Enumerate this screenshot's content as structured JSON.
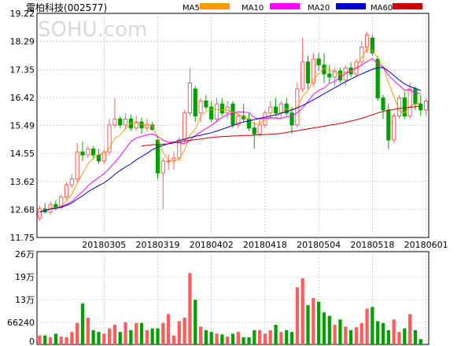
{
  "header": {
    "stock_name": "雷柏科技",
    "stock_code": "(002577)",
    "watermark": "SOHU.com"
  },
  "legend": [
    {
      "label": "MA5",
      "color": "#ff9900"
    },
    {
      "label": "MA10",
      "color": "#ff00ff"
    },
    {
      "label": "MA20",
      "color": "#0000cc"
    },
    {
      "label": "MA60",
      "color": "#cc0000"
    }
  ],
  "colors": {
    "up": "#ff5b5b",
    "down": "#00a000",
    "grid": "#b0b0b0",
    "axis": "#000000"
  },
  "chart_data": [
    {
      "type": "candlestick",
      "title": "雷柏科技(002577)",
      "ylim": [
        11.75,
        19.22
      ],
      "y_ticks": [
        "19.22",
        "18.29",
        "17.35",
        "16.42",
        "15.49",
        "14.55",
        "13.62",
        "12.68",
        "11.75"
      ],
      "x_tick_labels": [
        {
          "label": "20180305",
          "index": 12
        },
        {
          "label": "20180319",
          "index": 22
        },
        {
          "label": "20180402",
          "index": 32
        },
        {
          "label": "20180418",
          "index": 42
        },
        {
          "label": "20180504",
          "index": 52
        },
        {
          "label": "20180518",
          "index": 62
        },
        {
          "label": "20180601",
          "index": 72
        }
      ],
      "ohlc": [
        [
          12.4,
          12.8,
          12.3,
          12.7
        ],
        [
          12.7,
          12.9,
          12.55,
          12.6
        ],
        [
          12.6,
          12.95,
          12.5,
          12.85
        ],
        [
          12.85,
          13.0,
          12.65,
          12.75
        ],
        [
          12.75,
          13.2,
          12.7,
          13.1
        ],
        [
          13.1,
          13.6,
          13.0,
          13.5
        ],
        [
          13.5,
          13.85,
          13.4,
          13.7
        ],
        [
          13.7,
          14.9,
          13.6,
          14.6
        ],
        [
          14.6,
          14.95,
          14.3,
          14.5
        ],
        [
          14.5,
          14.8,
          14.4,
          14.7
        ],
        [
          14.7,
          14.8,
          14.35,
          14.5
        ],
        [
          14.5,
          14.7,
          14.2,
          14.3
        ],
        [
          14.3,
          14.7,
          14.2,
          14.6
        ],
        [
          14.6,
          15.7,
          14.5,
          15.5
        ],
        [
          15.5,
          16.4,
          15.4,
          15.7
        ],
        [
          15.7,
          15.8,
          15.4,
          15.5
        ],
        [
          15.5,
          15.9,
          15.35,
          15.7
        ],
        [
          15.7,
          15.85,
          15.3,
          15.4
        ],
        [
          15.4,
          15.8,
          15.3,
          15.6
        ],
        [
          15.6,
          15.75,
          15.2,
          15.4
        ],
        [
          15.4,
          15.7,
          15.3,
          15.5
        ],
        [
          15.5,
          15.6,
          15.3,
          15.35
        ],
        [
          15.0,
          15.1,
          13.7,
          13.9
        ],
        [
          13.9,
          14.4,
          12.7,
          14.3
        ],
        [
          14.3,
          14.5,
          14.0,
          14.3
        ],
        [
          14.3,
          14.6,
          14.0,
          14.4
        ],
        [
          14.4,
          15.1,
          14.3,
          15.0
        ],
        [
          15.0,
          16.0,
          14.9,
          15.9
        ],
        [
          15.9,
          17.4,
          15.8,
          16.9
        ],
        [
          16.7,
          16.8,
          15.6,
          15.8
        ],
        [
          15.9,
          16.4,
          15.6,
          16.3
        ],
        [
          16.3,
          16.5,
          16.0,
          16.1
        ],
        [
          16.1,
          16.3,
          15.6,
          15.7
        ],
        [
          15.7,
          16.4,
          15.6,
          16.2
        ],
        [
          16.2,
          16.4,
          15.8,
          15.9
        ],
        [
          15.9,
          16.3,
          15.7,
          16.1
        ],
        [
          16.2,
          16.3,
          15.4,
          15.5
        ],
        [
          15.5,
          15.9,
          15.4,
          15.8
        ],
        [
          15.8,
          16.2,
          15.6,
          15.7
        ],
        [
          15.7,
          15.9,
          15.3,
          15.4
        ],
        [
          15.4,
          15.6,
          14.7,
          15.2
        ],
        [
          15.2,
          15.7,
          15.1,
          15.5
        ],
        [
          15.5,
          16.0,
          15.4,
          15.9
        ],
        [
          15.9,
          16.3,
          15.7,
          16.1
        ],
        [
          16.1,
          16.4,
          15.8,
          15.9
        ],
        [
          15.9,
          16.3,
          15.7,
          16.2
        ],
        [
          16.2,
          16.4,
          15.8,
          15.9
        ],
        [
          15.9,
          16.1,
          15.2,
          15.5
        ],
        [
          15.5,
          16.9,
          15.4,
          16.7
        ],
        [
          16.7,
          18.4,
          16.6,
          17.6
        ],
        [
          17.6,
          17.8,
          16.7,
          16.9
        ],
        [
          16.9,
          17.9,
          16.8,
          17.7
        ],
        [
          17.7,
          17.9,
          17.3,
          17.5
        ],
        [
          17.5,
          17.9,
          16.9,
          17.2
        ],
        [
          17.2,
          17.5,
          16.9,
          17.1
        ],
        [
          17.1,
          17.4,
          16.8,
          17.3
        ],
        [
          17.3,
          17.4,
          16.9,
          17.0
        ],
        [
          17.0,
          17.5,
          16.8,
          17.4
        ],
        [
          17.4,
          17.6,
          17.1,
          17.2
        ],
        [
          17.2,
          17.7,
          17.1,
          17.6
        ],
        [
          17.6,
          18.3,
          17.5,
          18.1
        ],
        [
          18.1,
          18.6,
          17.9,
          18.5
        ],
        [
          18.4,
          18.5,
          17.8,
          17.9
        ],
        [
          17.7,
          17.8,
          16.3,
          16.4
        ],
        [
          16.4,
          16.5,
          15.7,
          16.0
        ],
        [
          16.0,
          16.2,
          14.7,
          15.0
        ],
        [
          15.0,
          15.9,
          14.9,
          15.8
        ],
        [
          15.8,
          16.5,
          15.7,
          16.4
        ],
        [
          16.4,
          16.6,
          15.7,
          15.8
        ],
        [
          15.8,
          16.9,
          15.7,
          16.7
        ],
        [
          16.7,
          16.8,
          16.0,
          16.2
        ],
        [
          16.2,
          16.5,
          15.8,
          16.0
        ],
        [
          16.0,
          16.4,
          15.8,
          16.3
        ]
      ],
      "ma": {
        "MA5": [
          12.6,
          12.65,
          12.72,
          12.74,
          12.81,
          12.96,
          13.19,
          13.57,
          13.88,
          14.2,
          14.4,
          14.52,
          14.52,
          14.72,
          15.06,
          15.16,
          15.38,
          15.56,
          15.58,
          15.52,
          15.52,
          15.47,
          15.04,
          14.58,
          14.32,
          14.31,
          14.36,
          14.66,
          15.17,
          15.37,
          15.77,
          15.95,
          16.03,
          16.02,
          16.0,
          16.0,
          15.92,
          15.86,
          15.78,
          15.7,
          15.52,
          15.56,
          15.66,
          15.74,
          15.74,
          15.92,
          16.04,
          16.01,
          16.09,
          16.45,
          16.64,
          17.01,
          17.22,
          17.39,
          17.34,
          17.26,
          17.18,
          17.26,
          17.28,
          17.42,
          17.74,
          18.04,
          17.98,
          17.74,
          17.44,
          16.91,
          16.45,
          15.98,
          15.89,
          16.12,
          16.2,
          16.24
        ],
        "MA10": [
          12.6,
          12.65,
          12.7,
          12.72,
          12.78,
          12.85,
          12.95,
          13.12,
          13.28,
          13.47,
          13.62,
          13.75,
          13.87,
          14.05,
          14.25,
          14.46,
          14.71,
          14.95,
          15.06,
          15.12,
          15.17,
          15.2,
          15.12,
          14.99,
          14.93,
          14.91,
          14.9,
          14.87,
          14.99,
          15.15,
          15.27,
          15.38,
          15.48,
          15.62,
          15.76,
          15.85,
          15.88,
          15.94,
          15.93,
          15.91,
          15.74,
          15.7,
          15.72,
          15.74,
          15.73,
          15.72,
          15.77,
          15.8,
          15.91,
          16.07,
          16.28,
          16.52,
          16.65,
          16.73,
          16.89,
          16.95,
          17.1,
          17.21,
          17.31,
          17.39,
          17.5,
          17.61,
          17.71,
          17.55,
          17.42,
          17.16,
          16.97,
          16.82,
          16.66,
          16.67,
          16.55,
          16.55
        ],
        "MA20": [
          12.6,
          12.65,
          12.7,
          12.72,
          12.76,
          12.82,
          12.9,
          13.03,
          13.14,
          13.27,
          13.38,
          13.48,
          13.57,
          13.7,
          13.85,
          13.98,
          14.1,
          14.2,
          14.34,
          14.45,
          14.55,
          14.68,
          14.76,
          14.82,
          14.88,
          14.93,
          14.98,
          15.03,
          15.08,
          15.12,
          15.16,
          15.2,
          15.24,
          15.3,
          15.36,
          15.42,
          15.48,
          15.55,
          15.6,
          15.64,
          15.68,
          15.72,
          15.76,
          15.8,
          15.84,
          15.89,
          15.94,
          16.0,
          16.07,
          16.15,
          16.24,
          16.34,
          16.44,
          16.54,
          16.64,
          16.74,
          16.84,
          16.94,
          17.03,
          17.12,
          17.2,
          17.28,
          17.36,
          17.4,
          17.42,
          17.3,
          17.15,
          17.0,
          16.87,
          16.78,
          16.72,
          16.65
        ],
        "MA60": [
          null,
          null,
          null,
          null,
          null,
          null,
          null,
          null,
          null,
          null,
          null,
          null,
          null,
          null,
          null,
          null,
          null,
          null,
          null,
          14.8,
          14.82,
          14.84,
          14.85,
          14.86,
          14.87,
          14.9,
          14.93,
          14.96,
          14.99,
          15.01,
          15.03,
          15.06,
          15.08,
          15.1,
          15.11,
          15.12,
          15.13,
          15.14,
          15.15,
          15.15,
          15.16,
          15.17,
          15.18,
          15.19,
          15.2,
          15.22,
          15.25,
          15.28,
          15.31,
          15.34,
          15.37,
          15.4,
          15.43,
          15.46,
          15.49,
          15.52,
          15.55,
          15.59,
          15.63,
          15.67,
          15.72,
          15.78,
          15.84,
          15.9,
          15.95,
          15.99,
          16.02,
          16.05,
          16.07,
          16.09,
          16.11,
          16.13
        ]
      }
    },
    {
      "type": "bar",
      "title": "",
      "y_ticks": [
        "26万",
        "19万",
        "13万",
        "66240",
        "0"
      ],
      "ylim": [
        0,
        260000
      ],
      "volume": [
        25000,
        25000,
        20000,
        30000,
        22000,
        20000,
        35000,
        60000,
        115000,
        75000,
        40000,
        35000,
        30000,
        45000,
        55000,
        35000,
        62000,
        40000,
        60000,
        60000,
        40000,
        45000,
        45000,
        60000,
        85000,
        25000,
        65000,
        75000,
        200000,
        125000,
        50000,
        40000,
        35000,
        30000,
        28000,
        22000,
        30000,
        35000,
        20000,
        20000,
        40000,
        40000,
        30000,
        40000,
        55000,
        35000,
        40000,
        35000,
        160000,
        185000,
        110000,
        130000,
        120000,
        90000,
        80000,
        55000,
        70000,
        50000,
        40000,
        48000,
        60000,
        100000,
        105000,
        65000,
        60000,
        40000,
        70000,
        35000,
        45000,
        85000,
        40000,
        15000
      ]
    }
  ]
}
